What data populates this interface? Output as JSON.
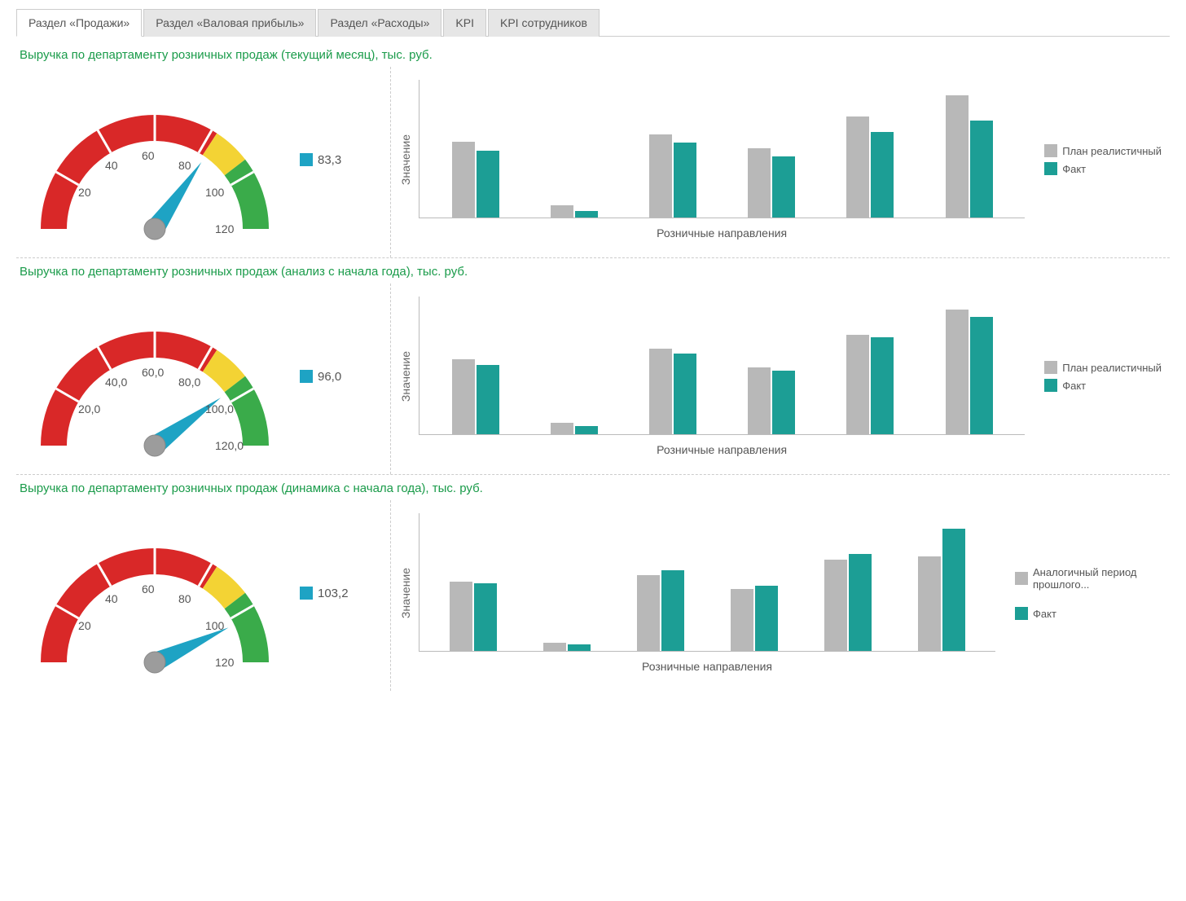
{
  "tabs": [
    {
      "label": "Раздел «Продажи»",
      "active": true
    },
    {
      "label": "Раздел «Валовая прибыль»",
      "active": false
    },
    {
      "label": "Раздел «Расходы»",
      "active": false
    },
    {
      "label": "KPI",
      "active": false
    },
    {
      "label": "KPI сотрудников",
      "active": false
    }
  ],
  "sections": [
    {
      "title": "Выручка по департаменту розничных продаж (текущий месяц), тыс. руб.",
      "gauge": {
        "min": 0,
        "max": 120,
        "value": 83.3,
        "value_label": "83,3",
        "ticks": [
          "20",
          "40",
          "60",
          "80",
          "100",
          "120"
        ],
        "zones": [
          {
            "from": 0,
            "to": 82,
            "color": "#d92828"
          },
          {
            "from": 82,
            "to": 95,
            "color": "#f3d334"
          },
          {
            "from": 95,
            "to": 120,
            "color": "#3aab4a"
          }
        ],
        "needle_color": "#1ea3c4",
        "hub_color": "#9c9c9c",
        "swatch_color": "#1ea3c4",
        "arc_bg": "#ffffff"
      },
      "bar_chart": {
        "ylabel": "Значение",
        "xlabel": "Розничные направления",
        "colors": {
          "plan": "#b8b8b8",
          "fact": "#1c9e95"
        },
        "legend": [
          {
            "key": "plan",
            "label": "План реалистичный"
          },
          {
            "key": "fact",
            "label": "Факт"
          }
        ],
        "ymax": 100,
        "groups": [
          {
            "plan": 55,
            "fact": 48
          },
          {
            "plan": 9,
            "fact": 5
          },
          {
            "plan": 60,
            "fact": 54
          },
          {
            "plan": 50,
            "fact": 44
          },
          {
            "plan": 73,
            "fact": 62
          },
          {
            "plan": 88,
            "fact": 70
          }
        ]
      }
    },
    {
      "title": "Выручка по департаменту розничных продаж (анализ с начала года), тыс. руб.",
      "gauge": {
        "min": 0,
        "max": 120,
        "value": 96.0,
        "value_label": "96,0",
        "ticks": [
          "20,0",
          "40,0",
          "60,0",
          "80,0",
          "100,0",
          "120,0"
        ],
        "zones": [
          {
            "from": 0,
            "to": 82,
            "color": "#d92828"
          },
          {
            "from": 82,
            "to": 95,
            "color": "#f3d334"
          },
          {
            "from": 95,
            "to": 120,
            "color": "#3aab4a"
          }
        ],
        "needle_color": "#1ea3c4",
        "hub_color": "#9c9c9c",
        "swatch_color": "#1ea3c4",
        "arc_bg": "#ffffff"
      },
      "bar_chart": {
        "ylabel": "Значение",
        "xlabel": "Розничные направления",
        "colors": {
          "plan": "#b8b8b8",
          "fact": "#1c9e95"
        },
        "legend": [
          {
            "key": "plan",
            "label": "План реалистичный"
          },
          {
            "key": "fact",
            "label": "Факт"
          }
        ],
        "ymax": 100,
        "groups": [
          {
            "plan": 54,
            "fact": 50
          },
          {
            "plan": 8,
            "fact": 6
          },
          {
            "plan": 62,
            "fact": 58
          },
          {
            "plan": 48,
            "fact": 46
          },
          {
            "plan": 72,
            "fact": 70
          },
          {
            "plan": 90,
            "fact": 85
          }
        ]
      }
    },
    {
      "title": "Выручка по департаменту розничных продаж (динамика с начала года), тыс. руб.",
      "gauge": {
        "min": 0,
        "max": 120,
        "value": 103.2,
        "value_label": "103,2",
        "ticks": [
          "20",
          "40",
          "60",
          "80",
          "100",
          "120"
        ],
        "zones": [
          {
            "from": 0,
            "to": 82,
            "color": "#d92828"
          },
          {
            "from": 82,
            "to": 95,
            "color": "#f3d334"
          },
          {
            "from": 95,
            "to": 120,
            "color": "#3aab4a"
          }
        ],
        "needle_color": "#1ea3c4",
        "hub_color": "#9c9c9c",
        "swatch_color": "#1ea3c4",
        "arc_bg": "#ffffff"
      },
      "bar_chart": {
        "ylabel": "Значение",
        "xlabel": "Розничные направления",
        "colors": {
          "plan": "#b8b8b8",
          "fact": "#1c9e95"
        },
        "legend": [
          {
            "key": "plan",
            "label": "Аналогичный период прошлого..."
          },
          {
            "key": "fact",
            "label": "Факт"
          }
        ],
        "legend_spaced": true,
        "ymax": 100,
        "groups": [
          {
            "plan": 50,
            "fact": 49
          },
          {
            "plan": 6,
            "fact": 5
          },
          {
            "plan": 55,
            "fact": 58
          },
          {
            "plan": 45,
            "fact": 47
          },
          {
            "plan": 66,
            "fact": 70
          },
          {
            "plan": 68,
            "fact": 88
          }
        ]
      }
    }
  ]
}
